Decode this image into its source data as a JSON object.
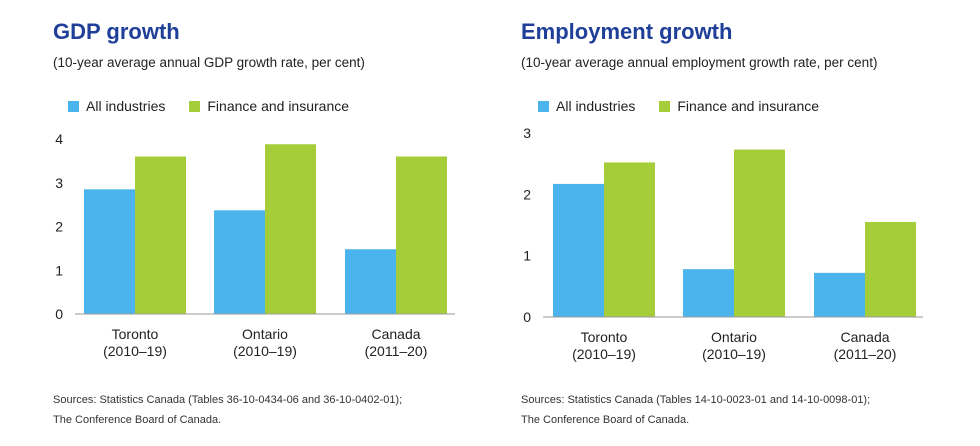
{
  "colors": {
    "all_industries": "#4cb4ec",
    "finance": "#a5cd39",
    "title": "#1f3f99",
    "axis": "#9a9a9a"
  },
  "chart_data": [
    {
      "type": "bar",
      "title": "GDP growth",
      "subtitle": "(10-year average annual GDP growth rate, per cent)",
      "categories": [
        [
          "Toronto",
          "(2010–19)"
        ],
        [
          "Ontario",
          "(2010–19)"
        ],
        [
          "Canada",
          "(2011–20)"
        ]
      ],
      "series": [
        {
          "name": "All industries",
          "values": [
            2.85,
            2.37,
            1.48
          ]
        },
        {
          "name": "Finance and insurance",
          "values": [
            3.6,
            3.88,
            3.6
          ]
        }
      ],
      "ylim": [
        0,
        4
      ],
      "yticks": [
        0,
        1,
        2,
        3,
        4
      ],
      "xlabel": "",
      "ylabel": "",
      "legend_position": "top-left",
      "grid": false,
      "source_lines": [
        "Sources: Statistics Canada (Tables 36-10-0434-06 and 36-10-0402-01);",
        "The Conference Board of Canada."
      ]
    },
    {
      "type": "bar",
      "title": "Employment growth",
      "subtitle": "(10-year average annual employment growth rate, per cent)",
      "categories": [
        [
          "Toronto",
          "(2010–19)"
        ],
        [
          "Ontario",
          "(2010–19)"
        ],
        [
          "Canada",
          "(2011–20)"
        ]
      ],
      "series": [
        {
          "name": "All industries",
          "values": [
            2.17,
            0.78,
            0.72
          ]
        },
        {
          "name": "Finance and insurance",
          "values": [
            2.52,
            2.73,
            1.55
          ]
        }
      ],
      "ylim": [
        0,
        3
      ],
      "yticks": [
        0,
        1,
        2,
        3
      ],
      "xlabel": "",
      "ylabel": "",
      "legend_position": "top-left",
      "grid": false,
      "source_lines": [
        "Sources: Statistics Canada (Tables 14-10-0023-01 and 14-10-0098-01);",
        "The Conference Board of Canada."
      ]
    }
  ]
}
